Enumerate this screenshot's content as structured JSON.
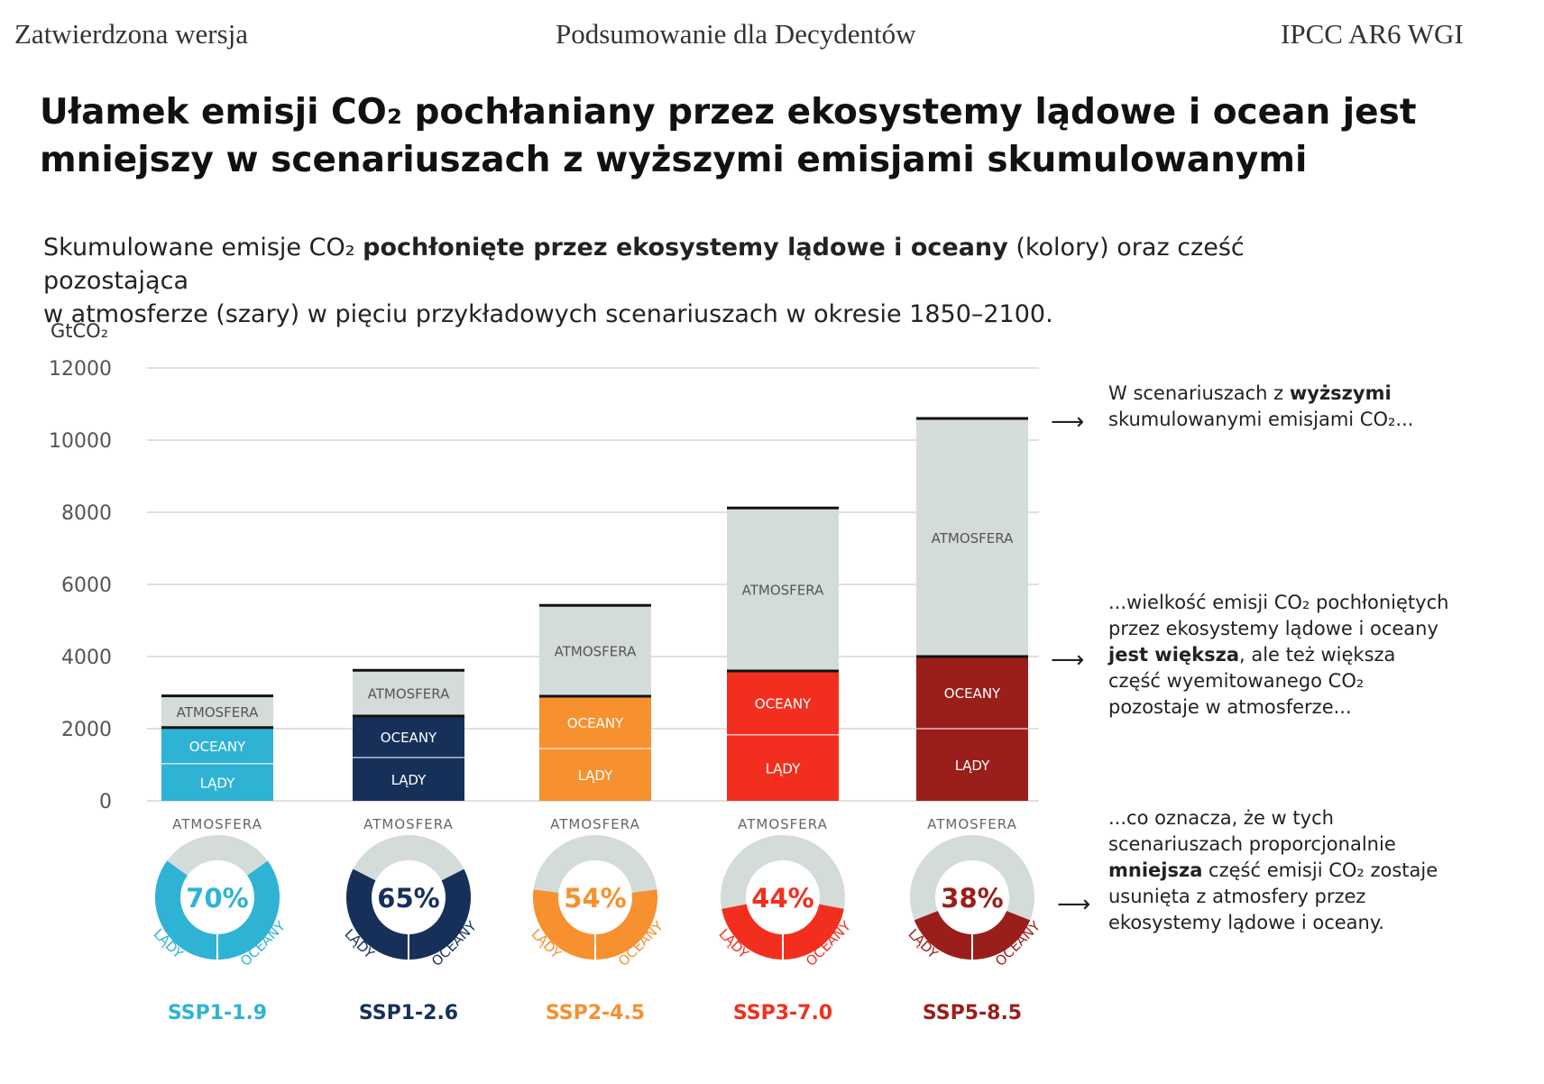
{
  "header": {
    "left": "Zatwierdzona wersja",
    "center": "Podsumowanie dla Decydentów",
    "right": "IPCC AR6 WGI"
  },
  "title_line1": "Ułamek emisji CO₂ pochłaniany przez ekosystemy lądowe i ocean jest",
  "title_line2": "mniejszy w scenariuszach z wyższymi emisjami skumulowanymi",
  "subtitle": {
    "part1": "Skumulowane emisje CO₂ ",
    "bold": "pochłonięte przez ekosystemy lądowe i oceany",
    "part2": " (kolory) oraz cześć pozostająca",
    "line2": "w atmosferze (szary) w pięciu przykładowych scenariuszach w okresie 1850–2100."
  },
  "annotations": {
    "a1_part1": "W scenariuszach z ",
    "a1_bold": "wyższymi",
    "a1_part2": "skumulowanymi emisjami CO₂...",
    "a2_part1": "...wielkość emisji CO₂ pochłoniętych przez ekosystemy lądowe i oceany ",
    "a2_bold": "jest większa",
    "a2_part2": ", ale też większa część wyemitowanego CO₂ pozostaje w atmosferze...",
    "a3_part1": "...co oznacza, że w tych scenariuszach proporcjonalnie ",
    "a3_bold": "mniejsza",
    "a3_part2": " część emisji CO₂ zostaje usunięta z atmosfery przez ekosystemy lądowe i oceany.",
    "arrow": "⟶"
  },
  "chart_data": {
    "type": "bar",
    "ylabel": "GtCO₂",
    "ylim": [
      0,
      12000
    ],
    "yticks": [
      0,
      2000,
      4000,
      6000,
      8000,
      10000,
      12000
    ],
    "grid": true,
    "segment_labels": {
      "land": "LĄDY",
      "ocean": "OCEANY",
      "atmosphere": "ATMOSFERA"
    },
    "categories": [
      "SSP1-1.9",
      "SSP1-2.6",
      "SSP2-4.5",
      "SSP3-7.0",
      "SSP5-8.5"
    ],
    "colors": [
      "#2fb3d4",
      "#17305a",
      "#f7902f",
      "#f22f1e",
      "#9a1e1a"
    ],
    "series": [
      {
        "name": "LĄDY",
        "values": [
          1030,
          1200,
          1450,
          1830,
          2000
        ]
      },
      {
        "name": "OCEANY",
        "values": [
          1000,
          1150,
          1450,
          1770,
          2000
        ]
      },
      {
        "name": "ATMOSFERA",
        "values": [
          880,
          1270,
          2520,
          4520,
          6600
        ]
      }
    ],
    "totals": [
      2910,
      3620,
      5420,
      8120,
      10600
    ],
    "sink_percentages": [
      "70%",
      "65%",
      "54%",
      "44%",
      "38%"
    ],
    "sink_fractions": [
      0.7,
      0.65,
      0.54,
      0.44,
      0.38
    ]
  }
}
